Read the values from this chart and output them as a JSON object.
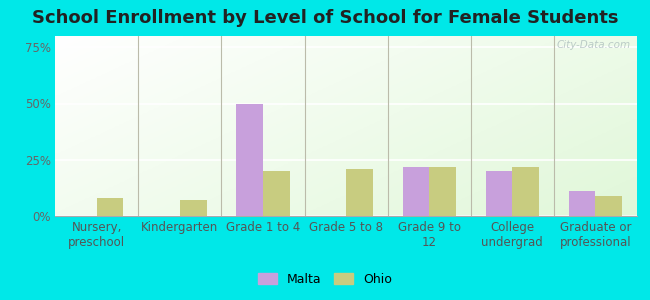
{
  "title": "School Enrollment by Level of School for Female Students",
  "categories": [
    "Nursery,\npreschool",
    "Kindergarten",
    "Grade 1 to 4",
    "Grade 5 to 8",
    "Grade 9 to\n12",
    "College\nundergrad",
    "Graduate or\nprofessional"
  ],
  "malta_values": [
    0,
    0,
    50,
    0,
    22,
    20,
    11
  ],
  "ohio_values": [
    8,
    7,
    20,
    21,
    22,
    22,
    9
  ],
  "malta_color": "#c8a0dc",
  "ohio_color": "#c8cc80",
  "background_color": "#00e8e8",
  "ylim": [
    0,
    80
  ],
  "yticks": [
    0,
    25,
    50,
    75
  ],
  "ytick_labels": [
    "0%",
    "25%",
    "50%",
    "75%"
  ],
  "bar_width": 0.32,
  "title_fontsize": 13,
  "tick_fontsize": 8.5,
  "legend_fontsize": 9,
  "watermark": "City-Data.com"
}
